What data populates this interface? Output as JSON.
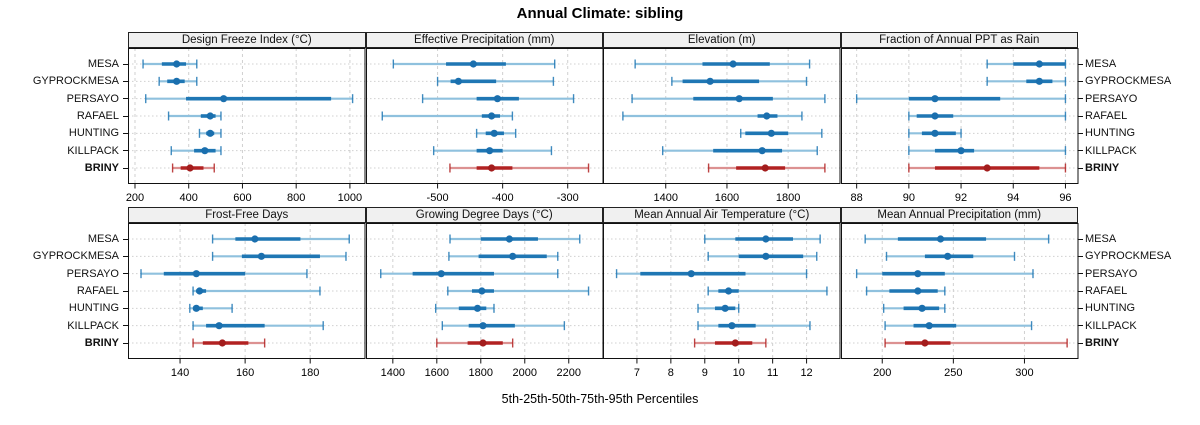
{
  "title": "Annual Climate: sibling",
  "caption": "5th-25th-50th-75th-95th Percentiles",
  "percentiles": [
    5,
    25,
    50,
    75,
    95
  ],
  "sites": [
    "MESA",
    "GYPROCKMESA",
    "PERSAYO",
    "RAFAEL",
    "HUNTING",
    "KILLPACK",
    "BRINY"
  ],
  "highlight_site": "BRINY",
  "colors": {
    "series": "#1f77b4",
    "series_light": "#8fc1de",
    "series_dot": "#1a6fae",
    "highlight": "#b22222",
    "highlight_light": "#dc9191",
    "highlight_dot": "#a31d1d",
    "header_bg": "#f0f0f0",
    "grid": "#d0d0d0",
    "border": "#111111"
  },
  "chart_data": [
    {
      "type": "dotplot_percentiles",
      "row": 0,
      "col": 0,
      "title": "Design Freeze Index (°C)",
      "xlim": [
        174,
        1058
      ],
      "ticks": [
        200,
        400,
        600,
        800,
        1000
      ],
      "series": [
        {
          "site": "MESA",
          "p": [
            230,
            300,
            355,
            390,
            430
          ]
        },
        {
          "site": "GYPROCKMESA",
          "p": [
            290,
            320,
            355,
            385,
            430
          ]
        },
        {
          "site": "PERSAYO",
          "p": [
            240,
            390,
            530,
            930,
            1010
          ]
        },
        {
          "site": "RAFAEL",
          "p": [
            325,
            445,
            480,
            500,
            520
          ]
        },
        {
          "site": "HUNTING",
          "p": [
            440,
            465,
            480,
            495,
            520
          ]
        },
        {
          "site": "KILLPACK",
          "p": [
            335,
            420,
            460,
            500,
            520
          ]
        },
        {
          "site": "BRINY",
          "p": [
            340,
            370,
            405,
            455,
            495
          ]
        }
      ]
    },
    {
      "type": "dotplot_percentiles",
      "row": 0,
      "col": 1,
      "title": "Effective Precipitation (mm)",
      "xlim": [
        -610,
        -245
      ],
      "ticks": [
        -500,
        -400,
        -300
      ],
      "series": [
        {
          "site": "MESA",
          "p": [
            -568,
            -487,
            -445,
            -395,
            -320
          ]
        },
        {
          "site": "GYPROCKMESA",
          "p": [
            -500,
            -480,
            -468,
            -410,
            -322
          ]
        },
        {
          "site": "PERSAYO",
          "p": [
            -523,
            -440,
            -408,
            -375,
            -291
          ]
        },
        {
          "site": "RAFAEL",
          "p": [
            -585,
            -432,
            -417,
            -404,
            -385
          ]
        },
        {
          "site": "HUNTING",
          "p": [
            -440,
            -426,
            -413,
            -398,
            -380
          ]
        },
        {
          "site": "KILLPACK",
          "p": [
            -506,
            -440,
            -420,
            -400,
            -325
          ]
        },
        {
          "site": "BRINY",
          "p": [
            -481,
            -440,
            -417,
            -385,
            -268
          ]
        }
      ]
    },
    {
      "type": "dotplot_percentiles",
      "row": 0,
      "col": 2,
      "title": "Elevation (m)",
      "xlim": [
        1195,
        1971
      ],
      "ticks": [
        1400,
        1600,
        1800
      ],
      "series": [
        {
          "site": "MESA",
          "p": [
            1300,
            1520,
            1620,
            1740,
            1870
          ]
        },
        {
          "site": "GYPROCKMESA",
          "p": [
            1420,
            1455,
            1545,
            1705,
            1860
          ]
        },
        {
          "site": "PERSAYO",
          "p": [
            1290,
            1490,
            1640,
            1750,
            1920
          ]
        },
        {
          "site": "RAFAEL",
          "p": [
            1260,
            1700,
            1730,
            1765,
            1845
          ]
        },
        {
          "site": "HUNTING",
          "p": [
            1645,
            1660,
            1745,
            1800,
            1910
          ]
        },
        {
          "site": "KILLPACK",
          "p": [
            1390,
            1555,
            1715,
            1780,
            1895
          ]
        },
        {
          "site": "BRINY",
          "p": [
            1540,
            1630,
            1725,
            1790,
            1920
          ]
        }
      ]
    },
    {
      "type": "dotplot_percentiles",
      "row": 0,
      "col": 3,
      "title": "Fraction of Annual PPT as Rain",
      "xlim": [
        87.4,
        96.5
      ],
      "ticks": [
        88,
        90,
        92,
        94,
        96
      ],
      "series": [
        {
          "site": "MESA",
          "p": [
            93,
            94,
            95,
            96,
            96
          ]
        },
        {
          "site": "GYPROCKMESA",
          "p": [
            93,
            94.5,
            95,
            95.5,
            96
          ]
        },
        {
          "site": "PERSAYO",
          "p": [
            88,
            90,
            91,
            93.5,
            96
          ]
        },
        {
          "site": "RAFAEL",
          "p": [
            90,
            90.3,
            91,
            91.7,
            96
          ]
        },
        {
          "site": "HUNTING",
          "p": [
            90,
            90.5,
            91,
            91.8,
            92
          ]
        },
        {
          "site": "KILLPACK",
          "p": [
            90,
            91,
            92,
            92.5,
            96
          ]
        },
        {
          "site": "BRINY",
          "p": [
            90,
            91,
            93,
            95,
            96
          ]
        }
      ]
    },
    {
      "type": "dotplot_percentiles",
      "row": 1,
      "col": 0,
      "title": "Frost-Free Days",
      "xlim": [
        124,
        197
      ],
      "ticks": [
        140,
        160,
        180
      ],
      "series": [
        {
          "site": "MESA",
          "p": [
            150,
            157,
            163,
            177,
            192
          ]
        },
        {
          "site": "GYPROCKMESA",
          "p": [
            150,
            159,
            165,
            183,
            191
          ]
        },
        {
          "site": "PERSAYO",
          "p": [
            128,
            135,
            145,
            160,
            179
          ]
        },
        {
          "site": "RAFAEL",
          "p": [
            144,
            145,
            146,
            148,
            183
          ]
        },
        {
          "site": "HUNTING",
          "p": [
            143,
            144,
            145,
            147,
            156
          ]
        },
        {
          "site": "KILLPACK",
          "p": [
            144,
            148,
            152,
            166,
            184
          ]
        },
        {
          "site": "BRINY",
          "p": [
            144,
            147,
            153,
            161,
            166
          ]
        }
      ]
    },
    {
      "type": "dotplot_percentiles",
      "row": 1,
      "col": 1,
      "title": "Growing Degree Days (°C)",
      "xlim": [
        1278,
        2358
      ],
      "ticks": [
        1400,
        1600,
        1800,
        2000,
        2200
      ],
      "series": [
        {
          "site": "MESA",
          "p": [
            1660,
            1800,
            1930,
            2060,
            2250
          ]
        },
        {
          "site": "GYPROCKMESA",
          "p": [
            1655,
            1790,
            1945,
            2100,
            2150
          ]
        },
        {
          "site": "PERSAYO",
          "p": [
            1345,
            1490,
            1620,
            1860,
            2150
          ]
        },
        {
          "site": "RAFAEL",
          "p": [
            1650,
            1760,
            1805,
            1860,
            2290
          ]
        },
        {
          "site": "HUNTING",
          "p": [
            1595,
            1700,
            1785,
            1825,
            1860
          ]
        },
        {
          "site": "KILLPACK",
          "p": [
            1625,
            1745,
            1810,
            1955,
            2180
          ]
        },
        {
          "site": "BRINY",
          "p": [
            1600,
            1740,
            1810,
            1900,
            1945
          ]
        }
      ]
    },
    {
      "type": "dotplot_percentiles",
      "row": 1,
      "col": 2,
      "title": "Mean Annual Air Temperature (°C)",
      "xlim": [
        6.0,
        13.0
      ],
      "ticks": [
        7,
        8,
        9,
        10,
        11,
        12
      ],
      "series": [
        {
          "site": "MESA",
          "p": [
            9.0,
            9.9,
            10.8,
            11.6,
            12.4
          ]
        },
        {
          "site": "GYPROCKMESA",
          "p": [
            9.1,
            10.0,
            10.8,
            11.9,
            12.3
          ]
        },
        {
          "site": "PERSAYO",
          "p": [
            6.4,
            7.1,
            8.6,
            10.2,
            12.0
          ]
        },
        {
          "site": "RAFAEL",
          "p": [
            9.1,
            9.4,
            9.7,
            10.0,
            12.6
          ]
        },
        {
          "site": "HUNTING",
          "p": [
            8.8,
            9.3,
            9.6,
            9.9,
            10.0
          ]
        },
        {
          "site": "KILLPACK",
          "p": [
            8.8,
            9.4,
            9.8,
            10.5,
            12.1
          ]
        },
        {
          "site": "BRINY",
          "p": [
            8.7,
            9.3,
            9.9,
            10.4,
            10.8
          ]
        }
      ]
    },
    {
      "type": "dotplot_percentiles",
      "row": 1,
      "col": 3,
      "title": "Mean Annual Precipitation (mm)",
      "xlim": [
        171,
        338
      ],
      "ticks": [
        200,
        250,
        300
      ],
      "series": [
        {
          "site": "MESA",
          "p": [
            188,
            211,
            241,
            273,
            317
          ]
        },
        {
          "site": "GYPROCKMESA",
          "p": [
            203,
            230,
            246,
            264,
            293
          ]
        },
        {
          "site": "PERSAYO",
          "p": [
            182,
            200,
            225,
            244,
            306
          ]
        },
        {
          "site": "RAFAEL",
          "p": [
            189,
            205,
            225,
            239,
            244
          ]
        },
        {
          "site": "HUNTING",
          "p": [
            201,
            215,
            228,
            240,
            244
          ]
        },
        {
          "site": "KILLPACK",
          "p": [
            202,
            222,
            233,
            252,
            305
          ]
        },
        {
          "site": "BRINY",
          "p": [
            202,
            216,
            230,
            248,
            330
          ]
        }
      ]
    }
  ]
}
